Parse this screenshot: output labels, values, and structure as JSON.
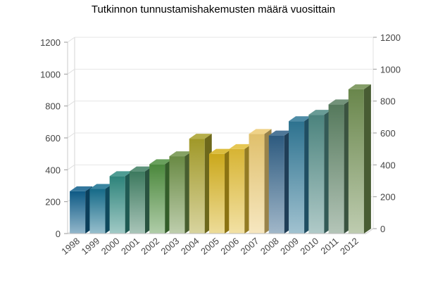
{
  "chart_data": {
    "type": "bar",
    "title": "Tutkinnon tunnustamishakemusten määrä vuosittain",
    "xlabel": "",
    "ylabel": "",
    "categories": [
      "1998",
      "1999",
      "2000",
      "2001",
      "2002",
      "2003",
      "2004",
      "2005",
      "2006",
      "2007",
      "2008",
      "2009",
      "2010",
      "2011",
      "2012"
    ],
    "values": [
      265,
      280,
      360,
      390,
      435,
      485,
      595,
      500,
      530,
      625,
      615,
      705,
      745,
      810,
      905
    ],
    "ylim": [
      0,
      1200
    ],
    "yticks": [
      0,
      200,
      400,
      600,
      800,
      1000,
      1200
    ],
    "secondary_yticks": [
      0,
      200,
      400,
      600,
      800,
      1000,
      1200
    ],
    "grid": true,
    "bar_colors": [
      "#0f5f8c",
      "#17708f",
      "#2f8a80",
      "#3f7f63",
      "#4f8f3f",
      "#6f9148",
      "#a8a02a",
      "#d6b11c",
      "#e2bd36",
      "#ecca72",
      "#2f5f86",
      "#2f7896",
      "#4f8a84",
      "#597f61",
      "#6f8d4f"
    ]
  }
}
